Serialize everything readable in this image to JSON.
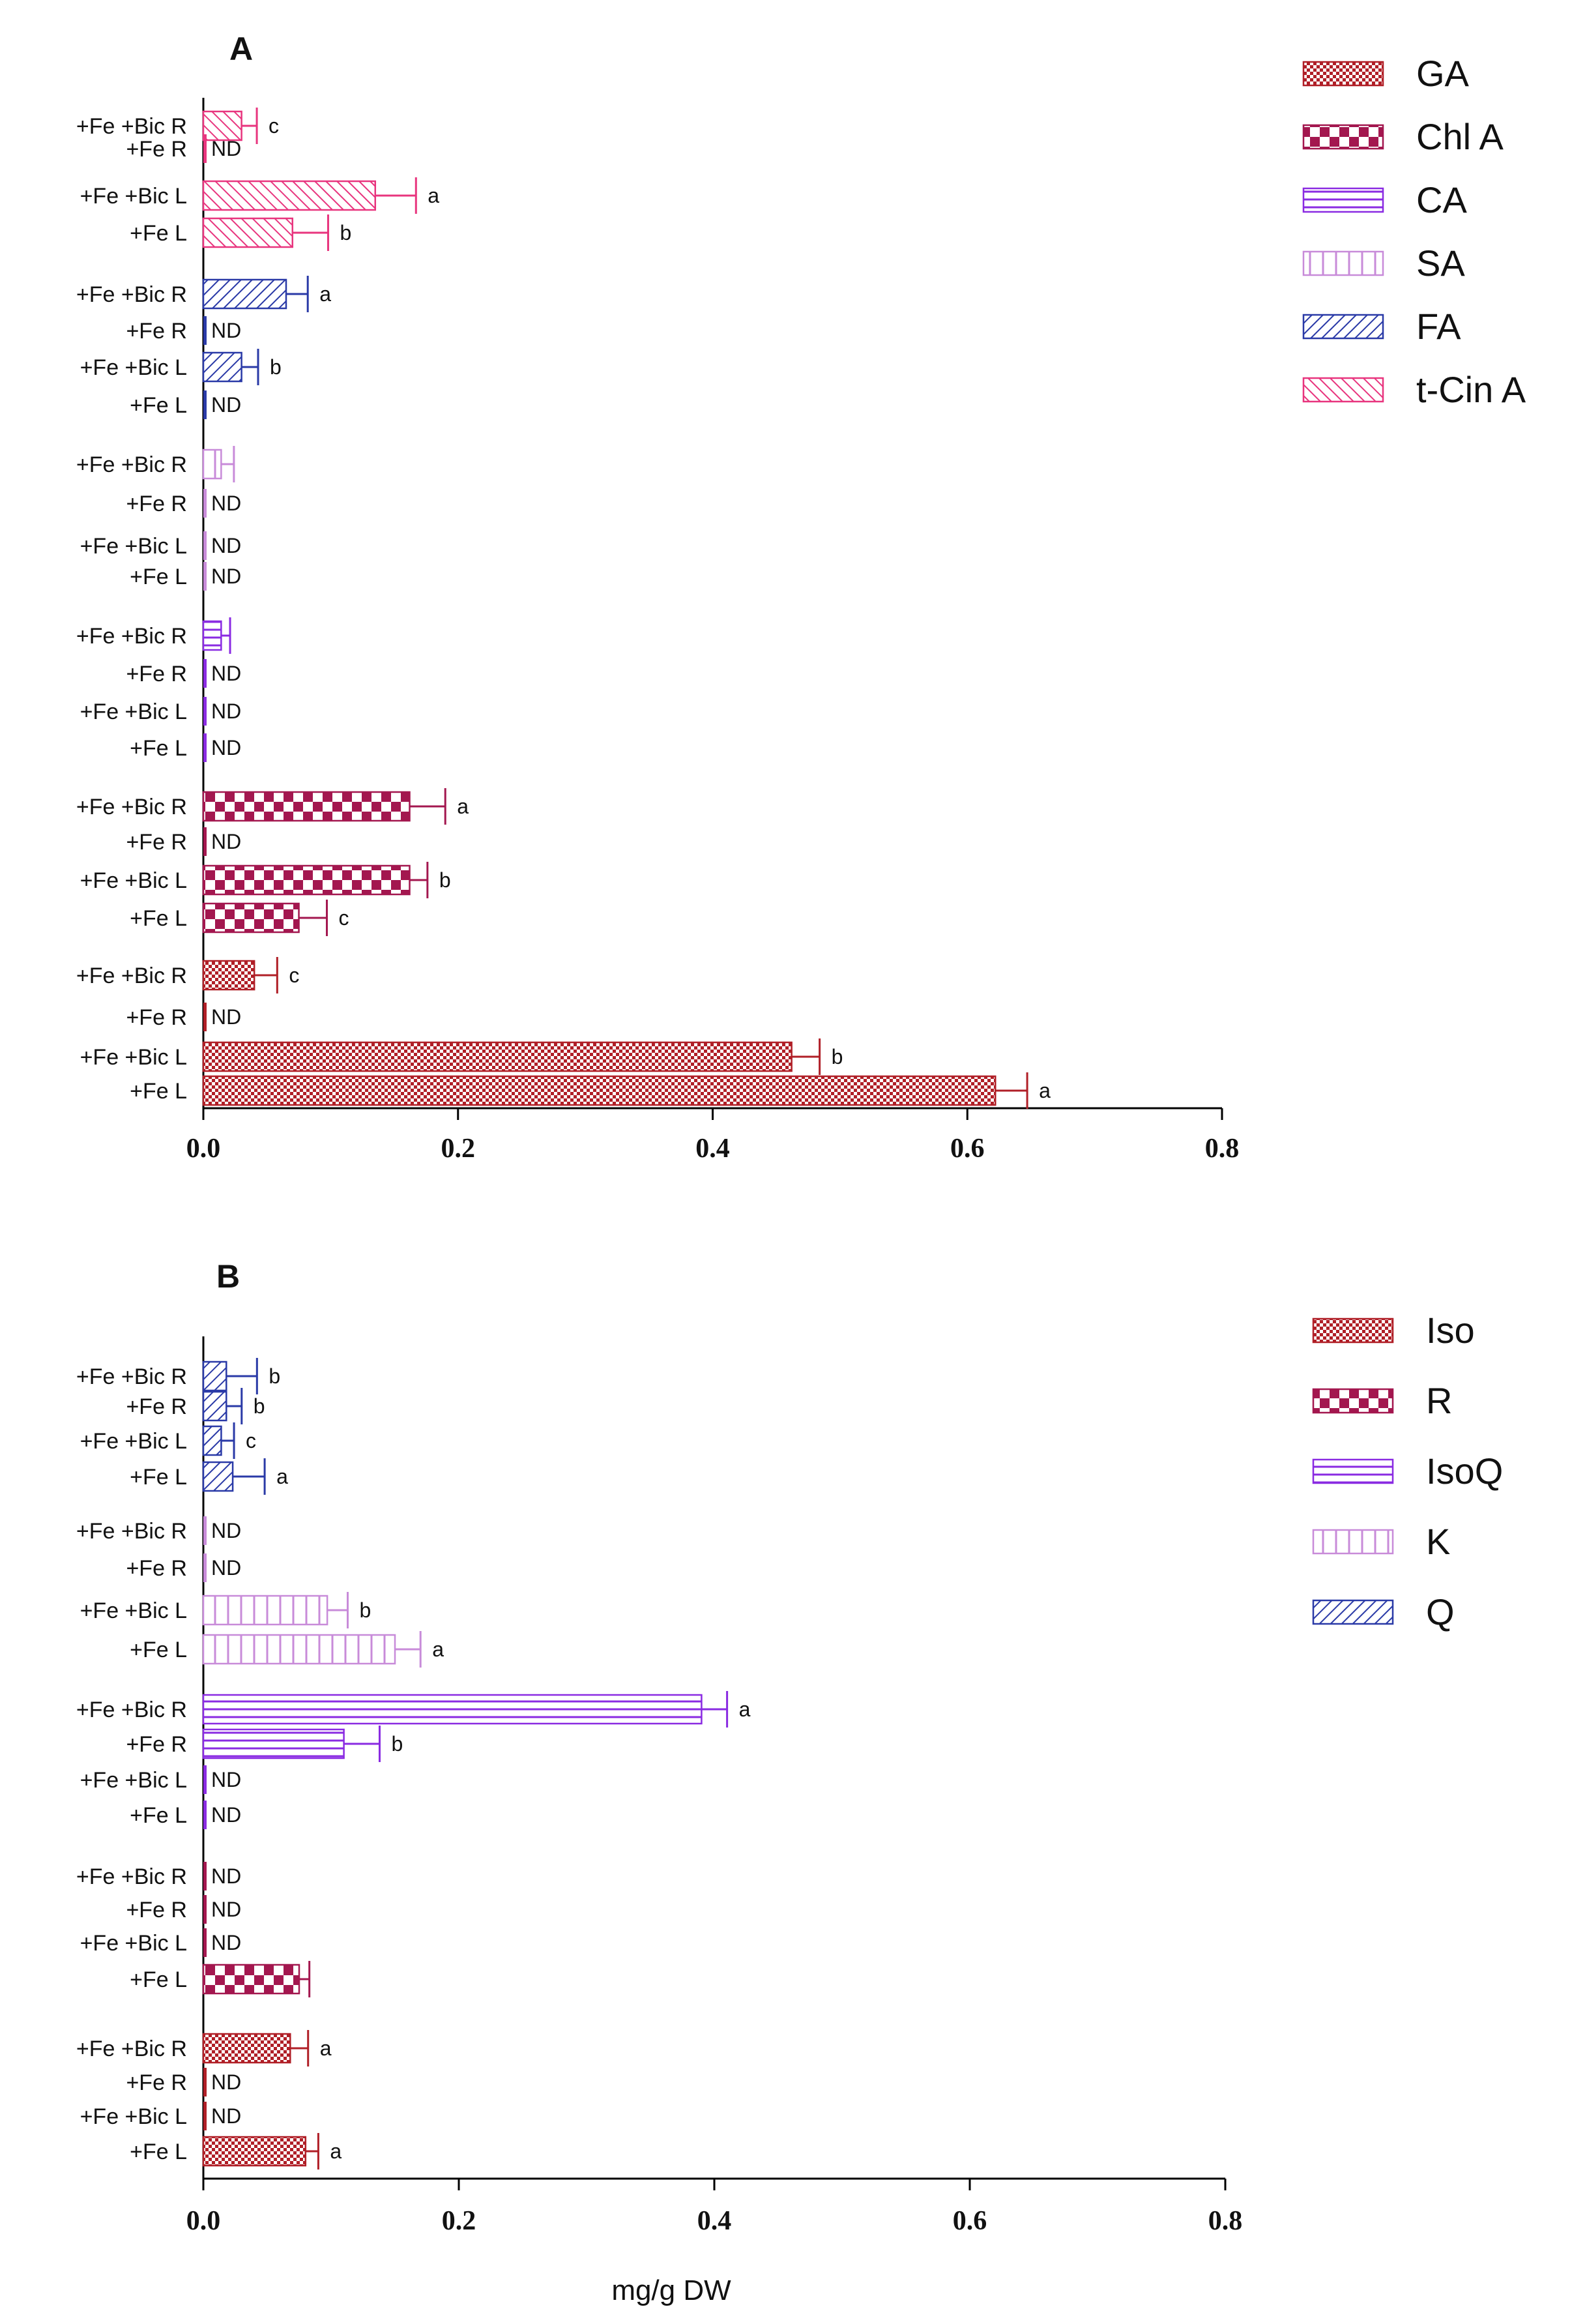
{
  "x_axis_label": "mg/g DW",
  "chart_data": [
    {
      "type": "bar",
      "orientation": "horizontal",
      "title": "A",
      "xlim": [
        0,
        0.8
      ],
      "xticks": [
        "0.0",
        "0.2",
        "0.4",
        "0.6",
        "0.8"
      ],
      "legend_position": "top-right",
      "groups": [
        {
          "name": "t-Cin A",
          "color": "#e8357e",
          "pattern": "diag-back",
          "bars": [
            {
              "category": "+Fe +Bic R",
              "value": 0.03,
              "error": 0.012,
              "annotation": "c"
            },
            {
              "category": "+Fe R",
              "value": 0.0,
              "error": 0.0,
              "annotation": "ND"
            },
            {
              "category": "+Fe +Bic L",
              "value": 0.135,
              "error": 0.032,
              "annotation": "a"
            },
            {
              "category": "+Fe L",
              "value": 0.07,
              "error": 0.028,
              "annotation": "b"
            }
          ]
        },
        {
          "name": "FA",
          "color": "#2a3aa7",
          "pattern": "diag-fwd",
          "bars": [
            {
              "category": "+Fe +Bic R",
              "value": 0.065,
              "error": 0.017,
              "annotation": "a"
            },
            {
              "category": "+Fe R",
              "value": 0.0,
              "error": 0.0,
              "annotation": "ND"
            },
            {
              "category": "+Fe +Bic L",
              "value": 0.03,
              "error": 0.013,
              "annotation": "b"
            },
            {
              "category": "+Fe L",
              "value": 0.0,
              "error": 0.0,
              "annotation": "ND"
            }
          ]
        },
        {
          "name": "SA",
          "color": "#c88bd9",
          "pattern": "vlines",
          "bars": [
            {
              "category": "+Fe +Bic R",
              "value": 0.014,
              "error": 0.01,
              "annotation": ""
            },
            {
              "category": "+Fe R",
              "value": 0.0,
              "error": 0.0,
              "annotation": "ND"
            },
            {
              "category": "+Fe +Bic L",
              "value": 0.0,
              "error": 0.0,
              "annotation": "ND"
            },
            {
              "category": "+Fe L",
              "value": 0.0,
              "error": 0.0,
              "annotation": "ND"
            }
          ]
        },
        {
          "name": "CA",
          "color": "#8a2be2",
          "pattern": "hlines",
          "bars": [
            {
              "category": "+Fe +Bic R",
              "value": 0.014,
              "error": 0.007,
              "annotation": ""
            },
            {
              "category": "+Fe R",
              "value": 0.0,
              "error": 0.0,
              "annotation": "ND"
            },
            {
              "category": "+Fe +Bic L",
              "value": 0.0,
              "error": 0.0,
              "annotation": "ND"
            },
            {
              "category": "+Fe L",
              "value": 0.0,
              "error": 0.0,
              "annotation": "ND"
            }
          ]
        },
        {
          "name": "Chl A",
          "color": "#a3174f",
          "pattern": "checker",
          "bars": [
            {
              "category": "+Fe +Bic R",
              "value": 0.162,
              "error": 0.028,
              "annotation": "a"
            },
            {
              "category": "+Fe R",
              "value": 0.0,
              "error": 0.0,
              "annotation": "ND"
            },
            {
              "category": "+Fe +Bic L",
              "value": 0.162,
              "error": 0.014,
              "annotation": "b"
            },
            {
              "category": "+Fe L",
              "value": 0.075,
              "error": 0.022,
              "annotation": "c"
            }
          ]
        },
        {
          "name": "GA",
          "color": "#b01f27",
          "pattern": "fine-check",
          "bars": [
            {
              "category": "+Fe +Bic R",
              "value": 0.04,
              "error": 0.018,
              "annotation": "c"
            },
            {
              "category": "+Fe R",
              "value": 0.0,
              "error": 0.0,
              "annotation": "ND"
            },
            {
              "category": "+Fe +Bic L",
              "value": 0.462,
              "error": 0.022,
              "annotation": "b"
            },
            {
              "category": "+Fe L",
              "value": 0.622,
              "error": 0.025,
              "annotation": "a"
            }
          ]
        }
      ],
      "legend": [
        {
          "label": "GA",
          "color": "#b01f27",
          "pattern": "fine-check"
        },
        {
          "label": "Chl A",
          "color": "#a3174f",
          "pattern": "checker"
        },
        {
          "label": "CA",
          "color": "#8a2be2",
          "pattern": "hlines"
        },
        {
          "label": "SA",
          "color": "#c88bd9",
          "pattern": "vlines"
        },
        {
          "label": "FA",
          "color": "#2a3aa7",
          "pattern": "diag-fwd"
        },
        {
          "label": "t-Cin A",
          "color": "#e8357e",
          "pattern": "diag-back"
        }
      ]
    },
    {
      "type": "bar",
      "orientation": "horizontal",
      "title": "B",
      "xlim": [
        0,
        0.8
      ],
      "xticks": [
        "0.0",
        "0.2",
        "0.4",
        "0.6",
        "0.8"
      ],
      "xlabel": "mg/g DW",
      "legend_position": "top-right",
      "groups": [
        {
          "name": "Q",
          "color": "#2a3aa7",
          "pattern": "diag-fwd",
          "bars": [
            {
              "category": "+Fe +Bic R",
              "value": 0.018,
              "error": 0.024,
              "annotation": "b"
            },
            {
              "category": "+Fe R",
              "value": 0.018,
              "error": 0.012,
              "annotation": "b"
            },
            {
              "category": "+Fe +Bic L",
              "value": 0.014,
              "error": 0.01,
              "annotation": "c"
            },
            {
              "category": "+Fe L",
              "value": 0.023,
              "error": 0.025,
              "annotation": "a"
            }
          ]
        },
        {
          "name": "K",
          "color": "#c88bd9",
          "pattern": "vlines",
          "bars": [
            {
              "category": "+Fe +Bic R",
              "value": 0.0,
              "error": 0.0,
              "annotation": "ND"
            },
            {
              "category": "+Fe R",
              "value": 0.0,
              "error": 0.0,
              "annotation": "ND"
            },
            {
              "category": "+Fe +Bic L",
              "value": 0.097,
              "error": 0.016,
              "annotation": "b"
            },
            {
              "category": "+Fe L",
              "value": 0.15,
              "error": 0.02,
              "annotation": "a"
            }
          ]
        },
        {
          "name": "IsoQ",
          "color": "#8a2be2",
          "pattern": "hlines",
          "bars": [
            {
              "category": "+Fe +Bic R",
              "value": 0.39,
              "error": 0.02,
              "annotation": "a"
            },
            {
              "category": "+Fe R",
              "value": 0.11,
              "error": 0.028,
              "annotation": "b"
            },
            {
              "category": "+Fe +Bic L",
              "value": 0.0,
              "error": 0.0,
              "annotation": "ND"
            },
            {
              "category": "+Fe L",
              "value": 0.0,
              "error": 0.0,
              "annotation": "ND"
            }
          ]
        },
        {
          "name": "R",
          "color": "#a3174f",
          "pattern": "checker",
          "bars": [
            {
              "category": "+Fe +Bic R",
              "value": 0.0,
              "error": 0.0,
              "annotation": "ND"
            },
            {
              "category": "+Fe R",
              "value": 0.0,
              "error": 0.0,
              "annotation": "ND"
            },
            {
              "category": "+Fe +Bic L",
              "value": 0.0,
              "error": 0.0,
              "annotation": "ND"
            },
            {
              "category": "+Fe L",
              "value": 0.075,
              "error": 0.008,
              "annotation": ""
            }
          ]
        },
        {
          "name": "Iso",
          "color": "#b01f27",
          "pattern": "fine-check",
          "bars": [
            {
              "category": "+Fe +Bic R",
              "value": 0.068,
              "error": 0.014,
              "annotation": "a"
            },
            {
              "category": "+Fe R",
              "value": 0.0,
              "error": 0.0,
              "annotation": "ND"
            },
            {
              "category": "+Fe +Bic L",
              "value": 0.0,
              "error": 0.0,
              "annotation": "ND"
            },
            {
              "category": "+Fe L",
              "value": 0.08,
              "error": 0.01,
              "annotation": "a"
            }
          ]
        }
      ],
      "legend": [
        {
          "label": "Iso",
          "color": "#b01f27",
          "pattern": "fine-check"
        },
        {
          "label": "R",
          "color": "#a3174f",
          "pattern": "checker"
        },
        {
          "label": "IsoQ",
          "color": "#8a2be2",
          "pattern": "hlines"
        },
        {
          "label": "K",
          "color": "#c88bd9",
          "pattern": "vlines"
        },
        {
          "label": "Q",
          "color": "#2a3aa7",
          "pattern": "diag-fwd"
        }
      ]
    }
  ]
}
